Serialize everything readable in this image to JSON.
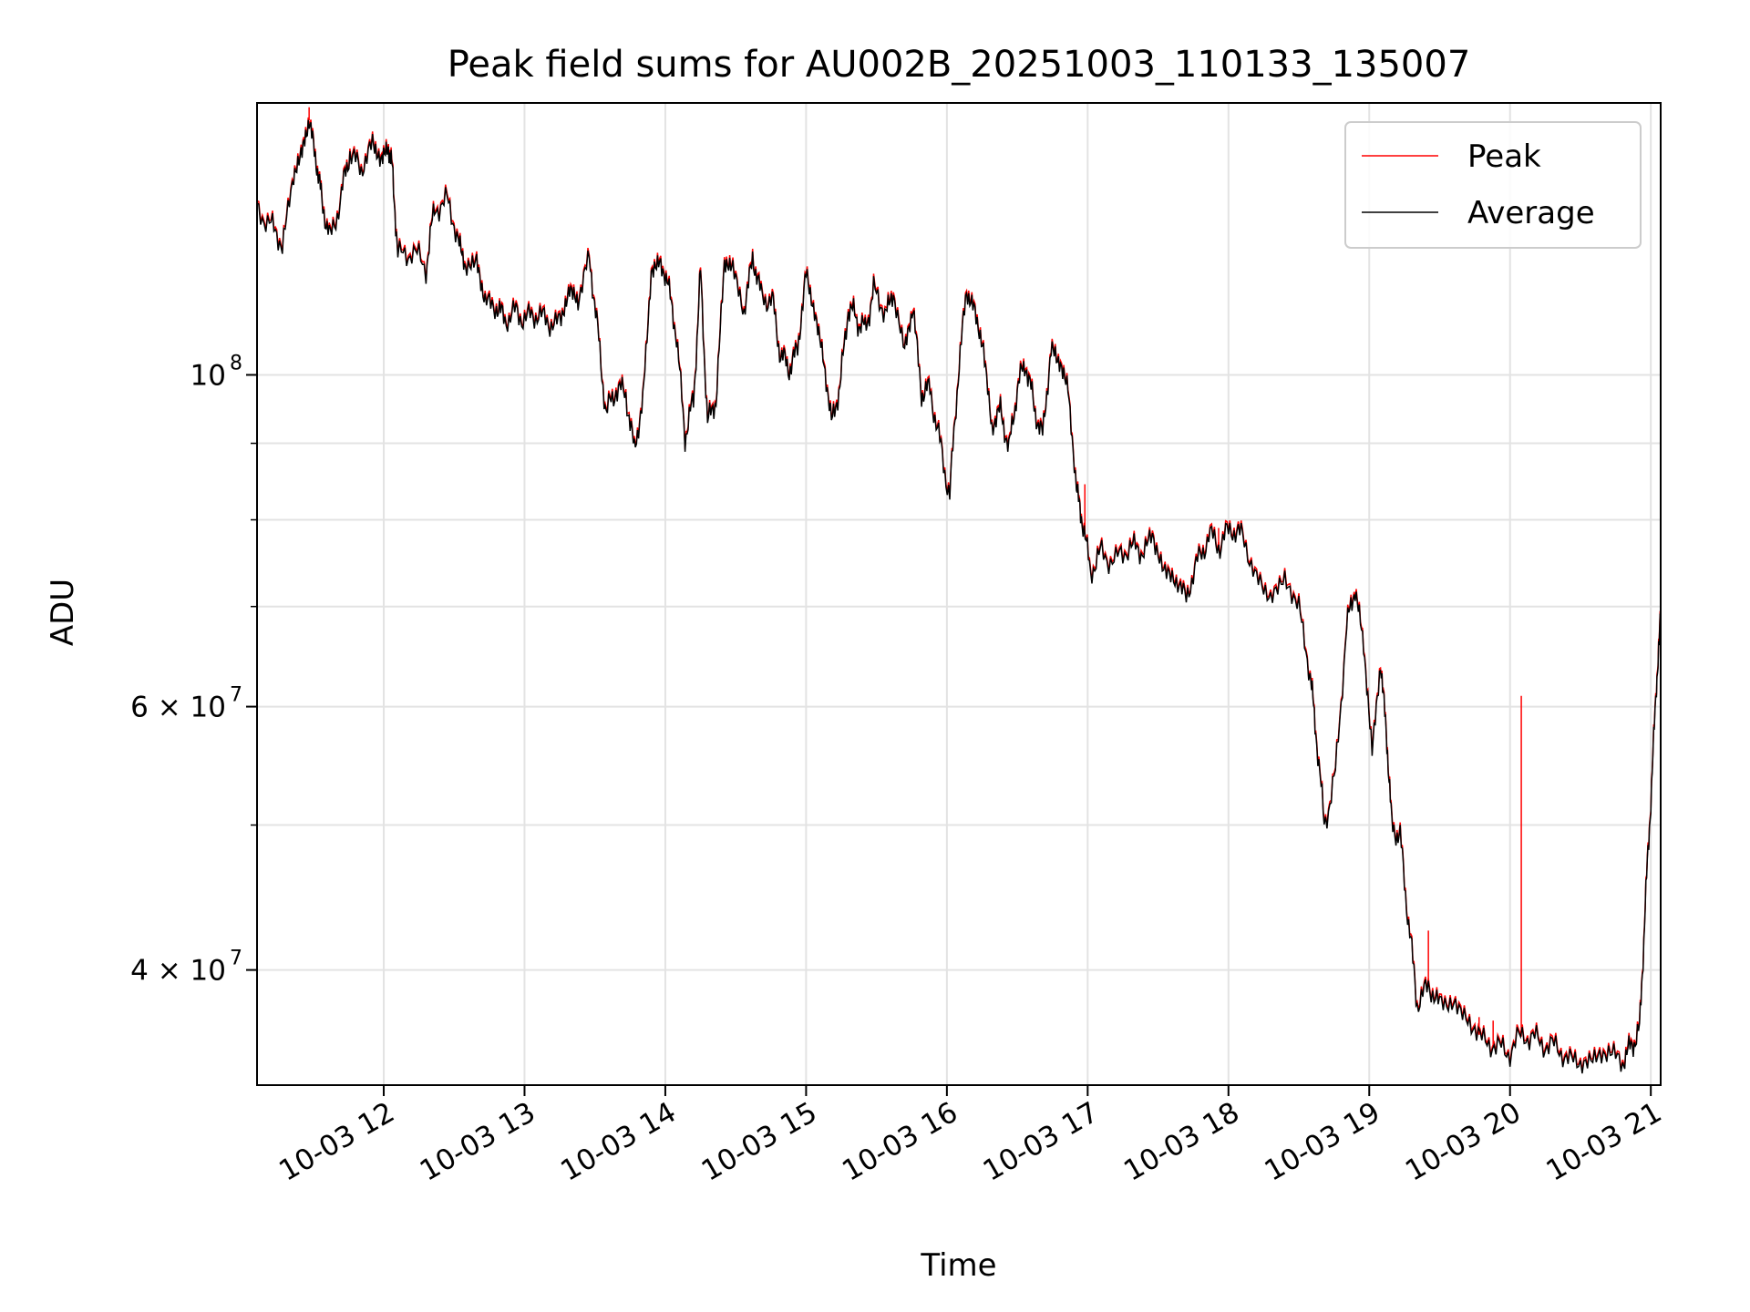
{
  "chart_data": {
    "type": "line",
    "title": "Peak field sums for AU002B_20251003_110133_135007",
    "xlabel": "Time",
    "ylabel": "ADU",
    "yscale": "log",
    "ylim": [
      33500000,
      152000000
    ],
    "xlim_hours": [
      11.1,
      21.07
    ],
    "grid": true,
    "legend": "top-right",
    "x_ticks": [
      {
        "value": 12,
        "label": "10-03 12"
      },
      {
        "value": 13,
        "label": "10-03 13"
      },
      {
        "value": 14,
        "label": "10-03 14"
      },
      {
        "value": 15,
        "label": "10-03 15"
      },
      {
        "value": 16,
        "label": "10-03 16"
      },
      {
        "value": 17,
        "label": "10-03 17"
      },
      {
        "value": 18,
        "label": "10-03 18"
      },
      {
        "value": 19,
        "label": "10-03 19"
      },
      {
        "value": 20,
        "label": "10-03 20"
      },
      {
        "value": 21,
        "label": "10-03 21"
      }
    ],
    "y_major_ticks": [
      {
        "value": 100000000,
        "base": "10",
        "exp": "8"
      },
      {
        "value": 60000000,
        "base": "6 × 10",
        "exp": "7"
      },
      {
        "value": 40000000,
        "base": "4 × 10",
        "exp": "7"
      }
    ],
    "y_minor_ticks": [
      50000000,
      70000000,
      80000000,
      90000000
    ],
    "series": [
      {
        "name": "Peak",
        "color": "#ff0000",
        "spikes": [
          {
            "x": 19.42,
            "y": 42500000
          },
          {
            "x": 19.78,
            "y": 37200000
          },
          {
            "x": 19.88,
            "y": 37000000
          },
          {
            "x": 20.08,
            "y": 61000000
          },
          {
            "x": 17.93,
            "y": 79000000
          },
          {
            "x": 16.98,
            "y": 84500000
          },
          {
            "x": 11.47,
            "y": 151000000
          }
        ]
      },
      {
        "name": "Average",
        "color": "#000000",
        "x": [
          11.1,
          11.2,
          11.28,
          11.36,
          11.42,
          11.47,
          11.52,
          11.56,
          11.62,
          11.7,
          11.76,
          11.84,
          11.92,
          11.98,
          12.03,
          12.06,
          12.1,
          12.2,
          12.3,
          12.36,
          12.45,
          12.53,
          12.58,
          12.66,
          12.72,
          12.8,
          12.86,
          12.94,
          13.02,
          13.1,
          13.18,
          13.26,
          13.32,
          13.38,
          13.46,
          13.52,
          13.58,
          13.65,
          13.72,
          13.78,
          13.84,
          13.9,
          13.96,
          14.02,
          14.08,
          14.14,
          14.2,
          14.25,
          14.3,
          14.36,
          14.42,
          14.48,
          14.56,
          14.62,
          14.68,
          14.76,
          14.82,
          14.88,
          14.94,
          15.0,
          15.06,
          15.12,
          15.18,
          15.24,
          15.3,
          15.36,
          15.42,
          15.48,
          15.56,
          15.62,
          15.7,
          15.76,
          15.82,
          15.88,
          15.95,
          16.02,
          16.08,
          16.14,
          16.2,
          16.26,
          16.32,
          16.38,
          16.44,
          16.5,
          16.56,
          16.62,
          16.68,
          16.74,
          16.8,
          16.86,
          16.92,
          16.96,
          17.02,
          17.1,
          17.2,
          17.3,
          17.38,
          17.46,
          17.54,
          17.62,
          17.7,
          17.78,
          17.86,
          17.94,
          18.02,
          18.1,
          18.2,
          18.3,
          18.4,
          18.5,
          18.58,
          18.62,
          18.68,
          18.76,
          18.84,
          18.9,
          18.96,
          19.02,
          19.08,
          19.12,
          19.16,
          19.22,
          19.28,
          19.34,
          19.42,
          19.5,
          19.6,
          19.7,
          19.8,
          19.9,
          20.0,
          20.1,
          20.2,
          20.3,
          20.4,
          20.5,
          20.6,
          20.7,
          20.8,
          20.86,
          20.92,
          20.96,
          21.0,
          21.04,
          21.07
        ],
        "y": [
          129000000,
          126000000,
          122000000,
          136000000,
          141000000,
          148000000,
          139000000,
          131000000,
          123000000,
          132000000,
          141000000,
          137000000,
          143000000,
          139000000,
          142000000,
          138000000,
          120000000,
          121000000,
          118000000,
          129000000,
          131000000,
          123000000,
          118000000,
          119000000,
          112000000,
          111000000,
          109000000,
          110000000,
          109000000,
          110000000,
          108000000,
          109000000,
          114000000,
          112000000,
          120000000,
          107000000,
          94000000,
          98000000,
          97000000,
          89000000,
          96000000,
          117000000,
          119000000,
          115000000,
          106000000,
          91000000,
          96000000,
          117000000,
          93000000,
          96000000,
          119000000,
          118000000,
          110000000,
          120000000,
          113000000,
          112000000,
          103000000,
          101000000,
          104000000,
          117000000,
          110000000,
          103000000,
          93000000,
          98000000,
          111000000,
          109000000,
          107000000,
          114000000,
          110000000,
          113000000,
          104000000,
          111000000,
          97000000,
          98000000,
          90000000,
          83000000,
          100000000,
          114000000,
          110000000,
          104000000,
          92000000,
          95000000,
          89000000,
          98000000,
          102000000,
          95000000,
          91000000,
          104000000,
          102000000,
          98000000,
          84000000,
          80000000,
          74000000,
          76000000,
          75000000,
          77000000,
          76000000,
          78000000,
          74000000,
          73000000,
          71000000,
          75000000,
          78000000,
          77000000,
          79000000,
          78000000,
          73000000,
          71000000,
          73000000,
          70000000,
          63000000,
          58000000,
          50000000,
          54000000,
          68000000,
          72000000,
          66000000,
          56000000,
          64000000,
          58000000,
          50000000,
          49000000,
          43000000,
          38000000,
          39000000,
          38000000,
          38000000,
          37000000,
          36000000,
          35500000,
          35300000,
          36300000,
          35800000,
          35600000,
          35000000,
          34600000,
          34900000,
          35300000,
          34700000,
          35600000,
          36400000,
          44000000,
          52000000,
          62000000,
          69000000
        ]
      }
    ]
  }
}
